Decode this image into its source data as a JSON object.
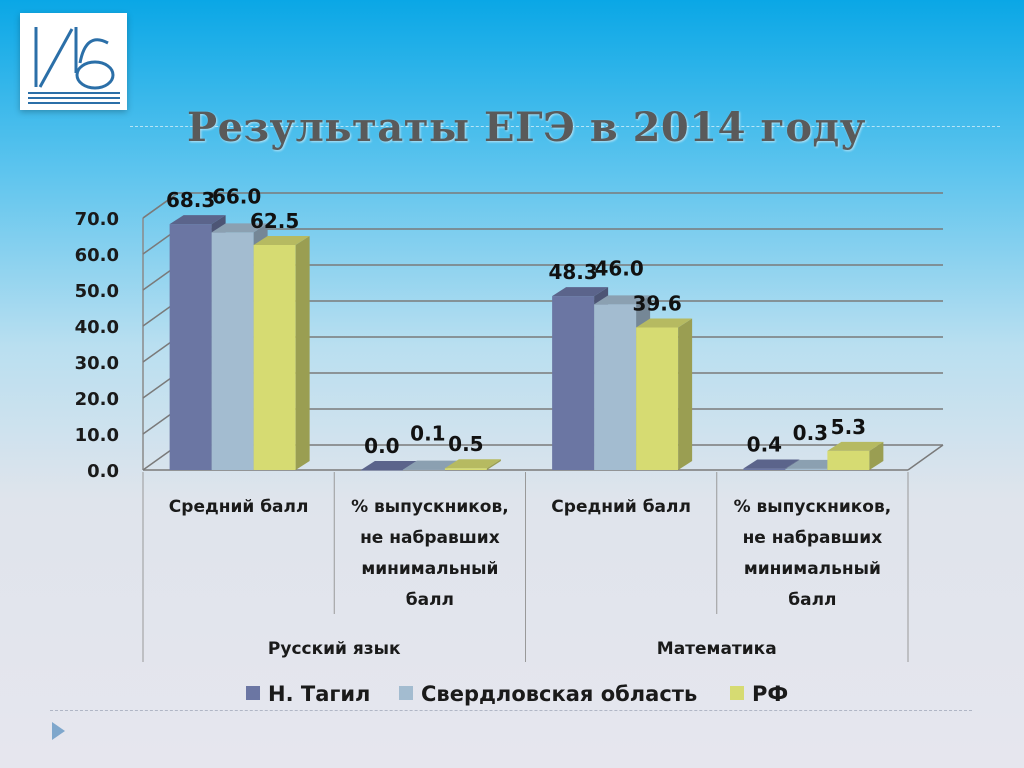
{
  "title": "Результаты ЕГЭ в 2014 году",
  "colors": {
    "n_tagil": "#6b76a3",
    "sverdlovsk": "#a3bcd0",
    "rf": "#d6db72"
  },
  "chart_data": {
    "type": "bar",
    "groups": [
      {
        "label": "Русский язык",
        "categories": [
          "Средний балл",
          "% выпускников, не набравших минимальный балл"
        ]
      },
      {
        "label": "Математика",
        "categories": [
          "Средний балл",
          "% выпускников, не набравших минимальный балл"
        ]
      }
    ],
    "categories": [
      "Средний балл",
      "% выпускников, не набравших минимальный балл",
      "Средний балл",
      "% выпускников, не набравших минимальный балл"
    ],
    "series": [
      {
        "name": "Н. Тагил",
        "values": [
          68.3,
          0.0,
          48.3,
          0.4
        ],
        "labels": [
          "68.3",
          "0.0",
          "48.3",
          "0.4"
        ]
      },
      {
        "name": "Свердловская область",
        "values": [
          66.0,
          0.1,
          46.0,
          0.3
        ],
        "labels": [
          "66.0",
          "0.1",
          "46.0",
          "0.3"
        ]
      },
      {
        "name": "РФ",
        "values": [
          62.5,
          0.5,
          39.6,
          5.3
        ],
        "labels": [
          "62.5",
          "0.5",
          "39.6",
          "5.3"
        ]
      }
    ],
    "yticks": [
      "0.0",
      "10.0",
      "20.0",
      "30.0",
      "40.0",
      "50.0",
      "60.0",
      "70.0"
    ],
    "ylim": [
      0,
      70
    ],
    "grid": true,
    "legend": "bottom"
  }
}
